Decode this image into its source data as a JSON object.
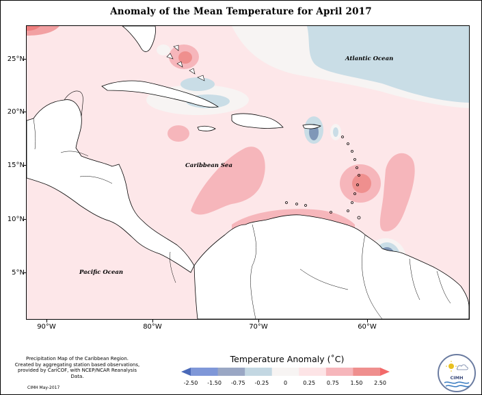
{
  "title": "Anomaly of the Mean Temperature for April 2017",
  "map": {
    "latitude_labels": [
      "25°N",
      "20°N",
      "15°N",
      "10°N",
      "5°N"
    ],
    "longitude_labels": [
      "90°W",
      "80°W",
      "70°W",
      "60°W"
    ],
    "place_labels": {
      "atlantic": "Atlantic Ocean",
      "caribbean": "Caribbean Sea",
      "pacific": "Pacific Ocean"
    }
  },
  "legend": {
    "title": "Temperature Anomaly (˚C)",
    "ticks": [
      "-2.50",
      "-1.50",
      "-0.75",
      "-0.25",
      "0",
      "0.25",
      "0.75",
      "1.50",
      "2.50"
    ],
    "colors": [
      "#4a69b8",
      "#7f97d8",
      "#9aa7c4",
      "#c3d7e2",
      "#f7f4f3",
      "#fde4e6",
      "#f6b6bb",
      "#ef8f8e",
      "#f26a6a"
    ]
  },
  "credit": {
    "line1": "Precipitation Map of the Caribbean Region.",
    "line2": "Created by aggregating station based observations,",
    "line3": "provided by CariCOF, with NCEP/NCAR Reanalysis Data.",
    "date": "CIMH May-2017"
  },
  "logo": {
    "text": "CIMH"
  }
}
